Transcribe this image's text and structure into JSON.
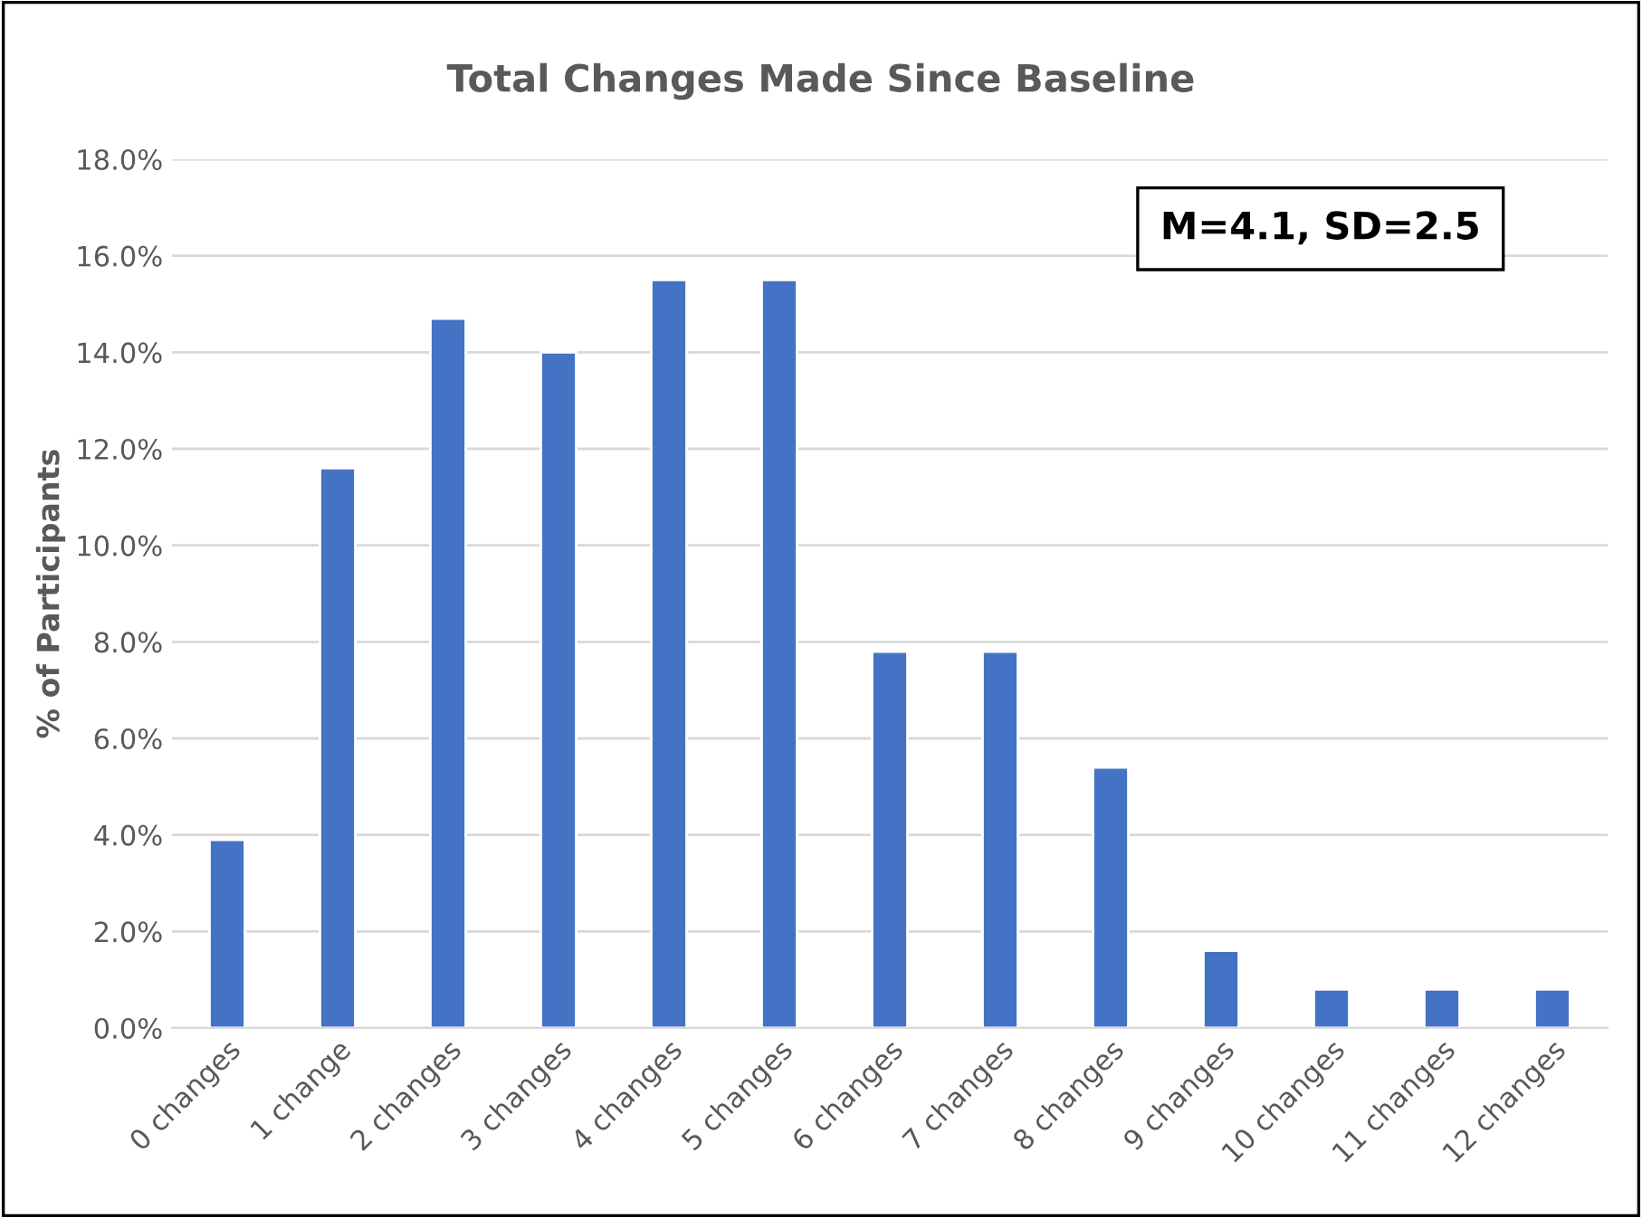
{
  "chart_data": {
    "type": "bar",
    "title": "Total Changes Made Since Baseline",
    "ylabel": "% of Participants",
    "categories": [
      "0 changes",
      "1 change",
      "2 changes",
      "3 changes",
      "4 changes",
      "5 changes",
      "6 changes",
      "7 changes",
      "8 changes",
      "9 changes",
      "10 changes",
      "11 changes",
      "12 changes"
    ],
    "values": [
      3.9,
      11.6,
      14.7,
      14.0,
      15.5,
      15.5,
      7.8,
      7.8,
      5.4,
      1.6,
      0.8,
      0.8,
      0.8
    ],
    "color": "#4472c4",
    "ylim": [
      0,
      18
    ],
    "yticks": [
      {
        "value": 0,
        "label": "0.0%"
      },
      {
        "value": 2,
        "label": "2.0%"
      },
      {
        "value": 4,
        "label": "4.0%"
      },
      {
        "value": 6,
        "label": "6.0%"
      },
      {
        "value": 8,
        "label": "8.0%"
      },
      {
        "value": 10,
        "label": "10.0%"
      },
      {
        "value": 12,
        "label": "12.0%"
      },
      {
        "value": 14,
        "label": "14.0%"
      },
      {
        "value": 16,
        "label": "16.0%"
      },
      {
        "value": 18,
        "label": "18.0%"
      }
    ],
    "grid": "y",
    "annotations": [
      "M=4.1, SD=2.5"
    ]
  }
}
